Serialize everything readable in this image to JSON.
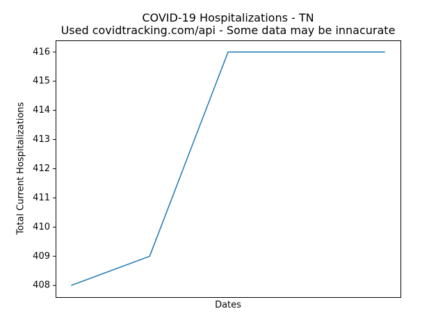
{
  "chart_data": {
    "type": "line",
    "title": "COVID-19 Hospitalizations - TN",
    "subtitle": "Used covidtracking.com/api - Some data may be innacurate",
    "xlabel": "Dates",
    "ylabel": "Total Current Hospitalizations",
    "ylim": [
      407.6,
      416.4
    ],
    "yticks": [
      408,
      409,
      410,
      411,
      412,
      413,
      414,
      415,
      416
    ],
    "grid": false,
    "series": [
      {
        "values": [
          408,
          409,
          416,
          416,
          416
        ],
        "color": "#1f77b4"
      }
    ]
  }
}
